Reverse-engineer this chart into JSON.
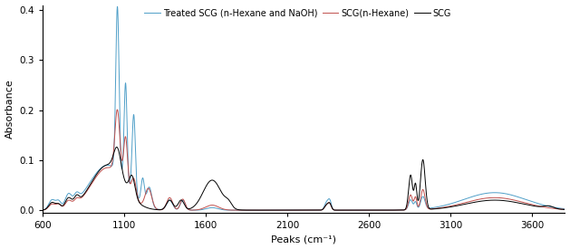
{
  "title": "",
  "xlabel": "Peaks (cm⁻¹)",
  "ylabel": "Absorbance",
  "xlim": [
    600,
    3800
  ],
  "ylim": [
    -0.005,
    0.41
  ],
  "yticks": [
    0.0,
    0.1,
    0.2,
    0.3,
    0.4
  ],
  "xticks": [
    600,
    1100,
    1600,
    2100,
    2600,
    3100,
    3600
  ],
  "legend": [
    "SCG",
    "SCG(n-Hexane)",
    "Treated SCG (n-Hexane and NaOH)"
  ],
  "colors": [
    "#000000",
    "#c0504d",
    "#4f9fc8"
  ],
  "linewidth": 0.7
}
